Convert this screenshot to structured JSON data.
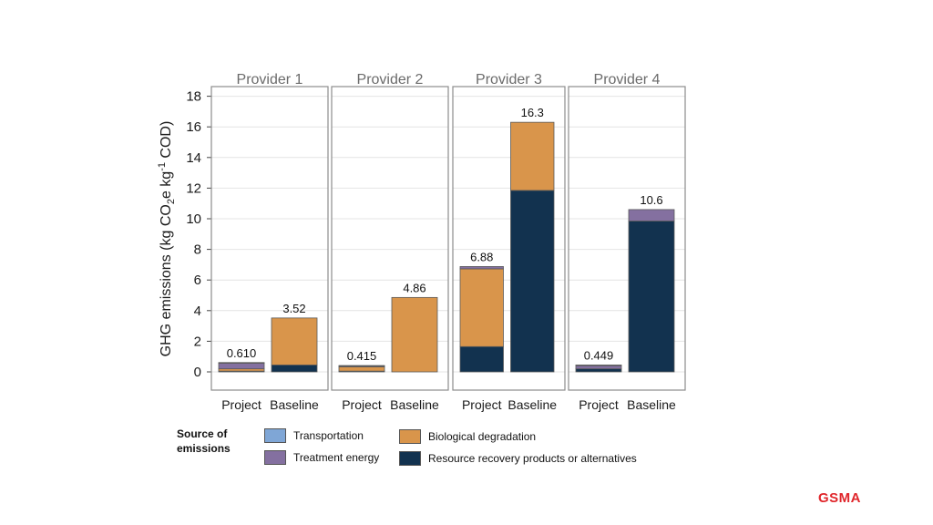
{
  "chart_data": {
    "type": "bar",
    "stacked": true,
    "ylabel": "GHG emissions (kg CO2e kg-1 COD)",
    "ylim": [
      -1.2,
      19
    ],
    "yticks": [
      0,
      2,
      4,
      6,
      8,
      10,
      12,
      14,
      16,
      18
    ],
    "grid": true,
    "categories": [
      "Project",
      "Baseline"
    ],
    "colors": {
      "Transportation": "#7fa6d6",
      "Treatment energy": "#8470a0",
      "Biological degradation": "#d9954b",
      "Resource recovery products or alternatives": "#12324f"
    },
    "panels": [
      {
        "title": "Provider 1",
        "bars": [
          {
            "category": "Project",
            "total_label": "0.610",
            "segments": [
              {
                "series": "Resource recovery products or alternatives",
                "value": 0.05
              },
              {
                "series": "Biological degradation",
                "value": 0.15
              },
              {
                "series": "Treatment energy",
                "value": 0.38
              },
              {
                "series": "Transportation",
                "value": 0.03
              }
            ]
          },
          {
            "category": "Baseline",
            "total_label": "3.52",
            "segments": [
              {
                "series": "Resource recovery products or alternatives",
                "value": 0.45
              },
              {
                "series": "Biological degradation",
                "value": 3.07
              }
            ]
          }
        ]
      },
      {
        "title": "Provider 2",
        "bars": [
          {
            "category": "Project",
            "total_label": "0.415",
            "segments": [
              {
                "series": "Resource recovery products or alternatives",
                "value": 0.05
              },
              {
                "series": "Biological degradation",
                "value": 0.28
              },
              {
                "series": "Treatment energy",
                "value": 0.06
              },
              {
                "series": "Transportation",
                "value": 0.025
              }
            ]
          },
          {
            "category": "Baseline",
            "total_label": "4.86",
            "segments": [
              {
                "series": "Biological degradation",
                "value": 4.86
              }
            ]
          }
        ]
      },
      {
        "title": "Provider 3",
        "bars": [
          {
            "category": "Project",
            "total_label": "6.88",
            "segments": [
              {
                "series": "Resource recovery products or alternatives",
                "value": 1.65
              },
              {
                "series": "Biological degradation",
                "value": 5.08
              },
              {
                "series": "Treatment energy",
                "value": 0.15
              }
            ]
          },
          {
            "category": "Baseline",
            "total_label": "16.3",
            "segments": [
              {
                "series": "Resource recovery products or alternatives",
                "value": 11.85
              },
              {
                "series": "Biological degradation",
                "value": 4.45
              }
            ]
          }
        ]
      },
      {
        "title": "Provider 4",
        "bars": [
          {
            "category": "Project",
            "total_label": "0.449",
            "segments": [
              {
                "series": "Resource recovery products or alternatives",
                "value": 0.2
              },
              {
                "series": "Treatment energy",
                "value": 0.22
              },
              {
                "series": "Transportation",
                "value": 0.029
              }
            ]
          },
          {
            "category": "Baseline",
            "total_label": "10.6",
            "segments": [
              {
                "series": "Resource recovery products or alternatives",
                "value": 9.85
              },
              {
                "series": "Treatment energy",
                "value": 0.75
              }
            ]
          }
        ]
      }
    ]
  },
  "legend": {
    "title": "Source of emissions",
    "items": [
      {
        "label": "Transportation",
        "color": "#7fa6d6"
      },
      {
        "label": "Treatment energy",
        "color": "#8470a0"
      },
      {
        "label": "Biological degradation",
        "color": "#d9954b"
      },
      {
        "label": "Resource recovery products or alternatives",
        "color": "#12324f"
      }
    ]
  },
  "brand": {
    "name": "GSMA"
  }
}
